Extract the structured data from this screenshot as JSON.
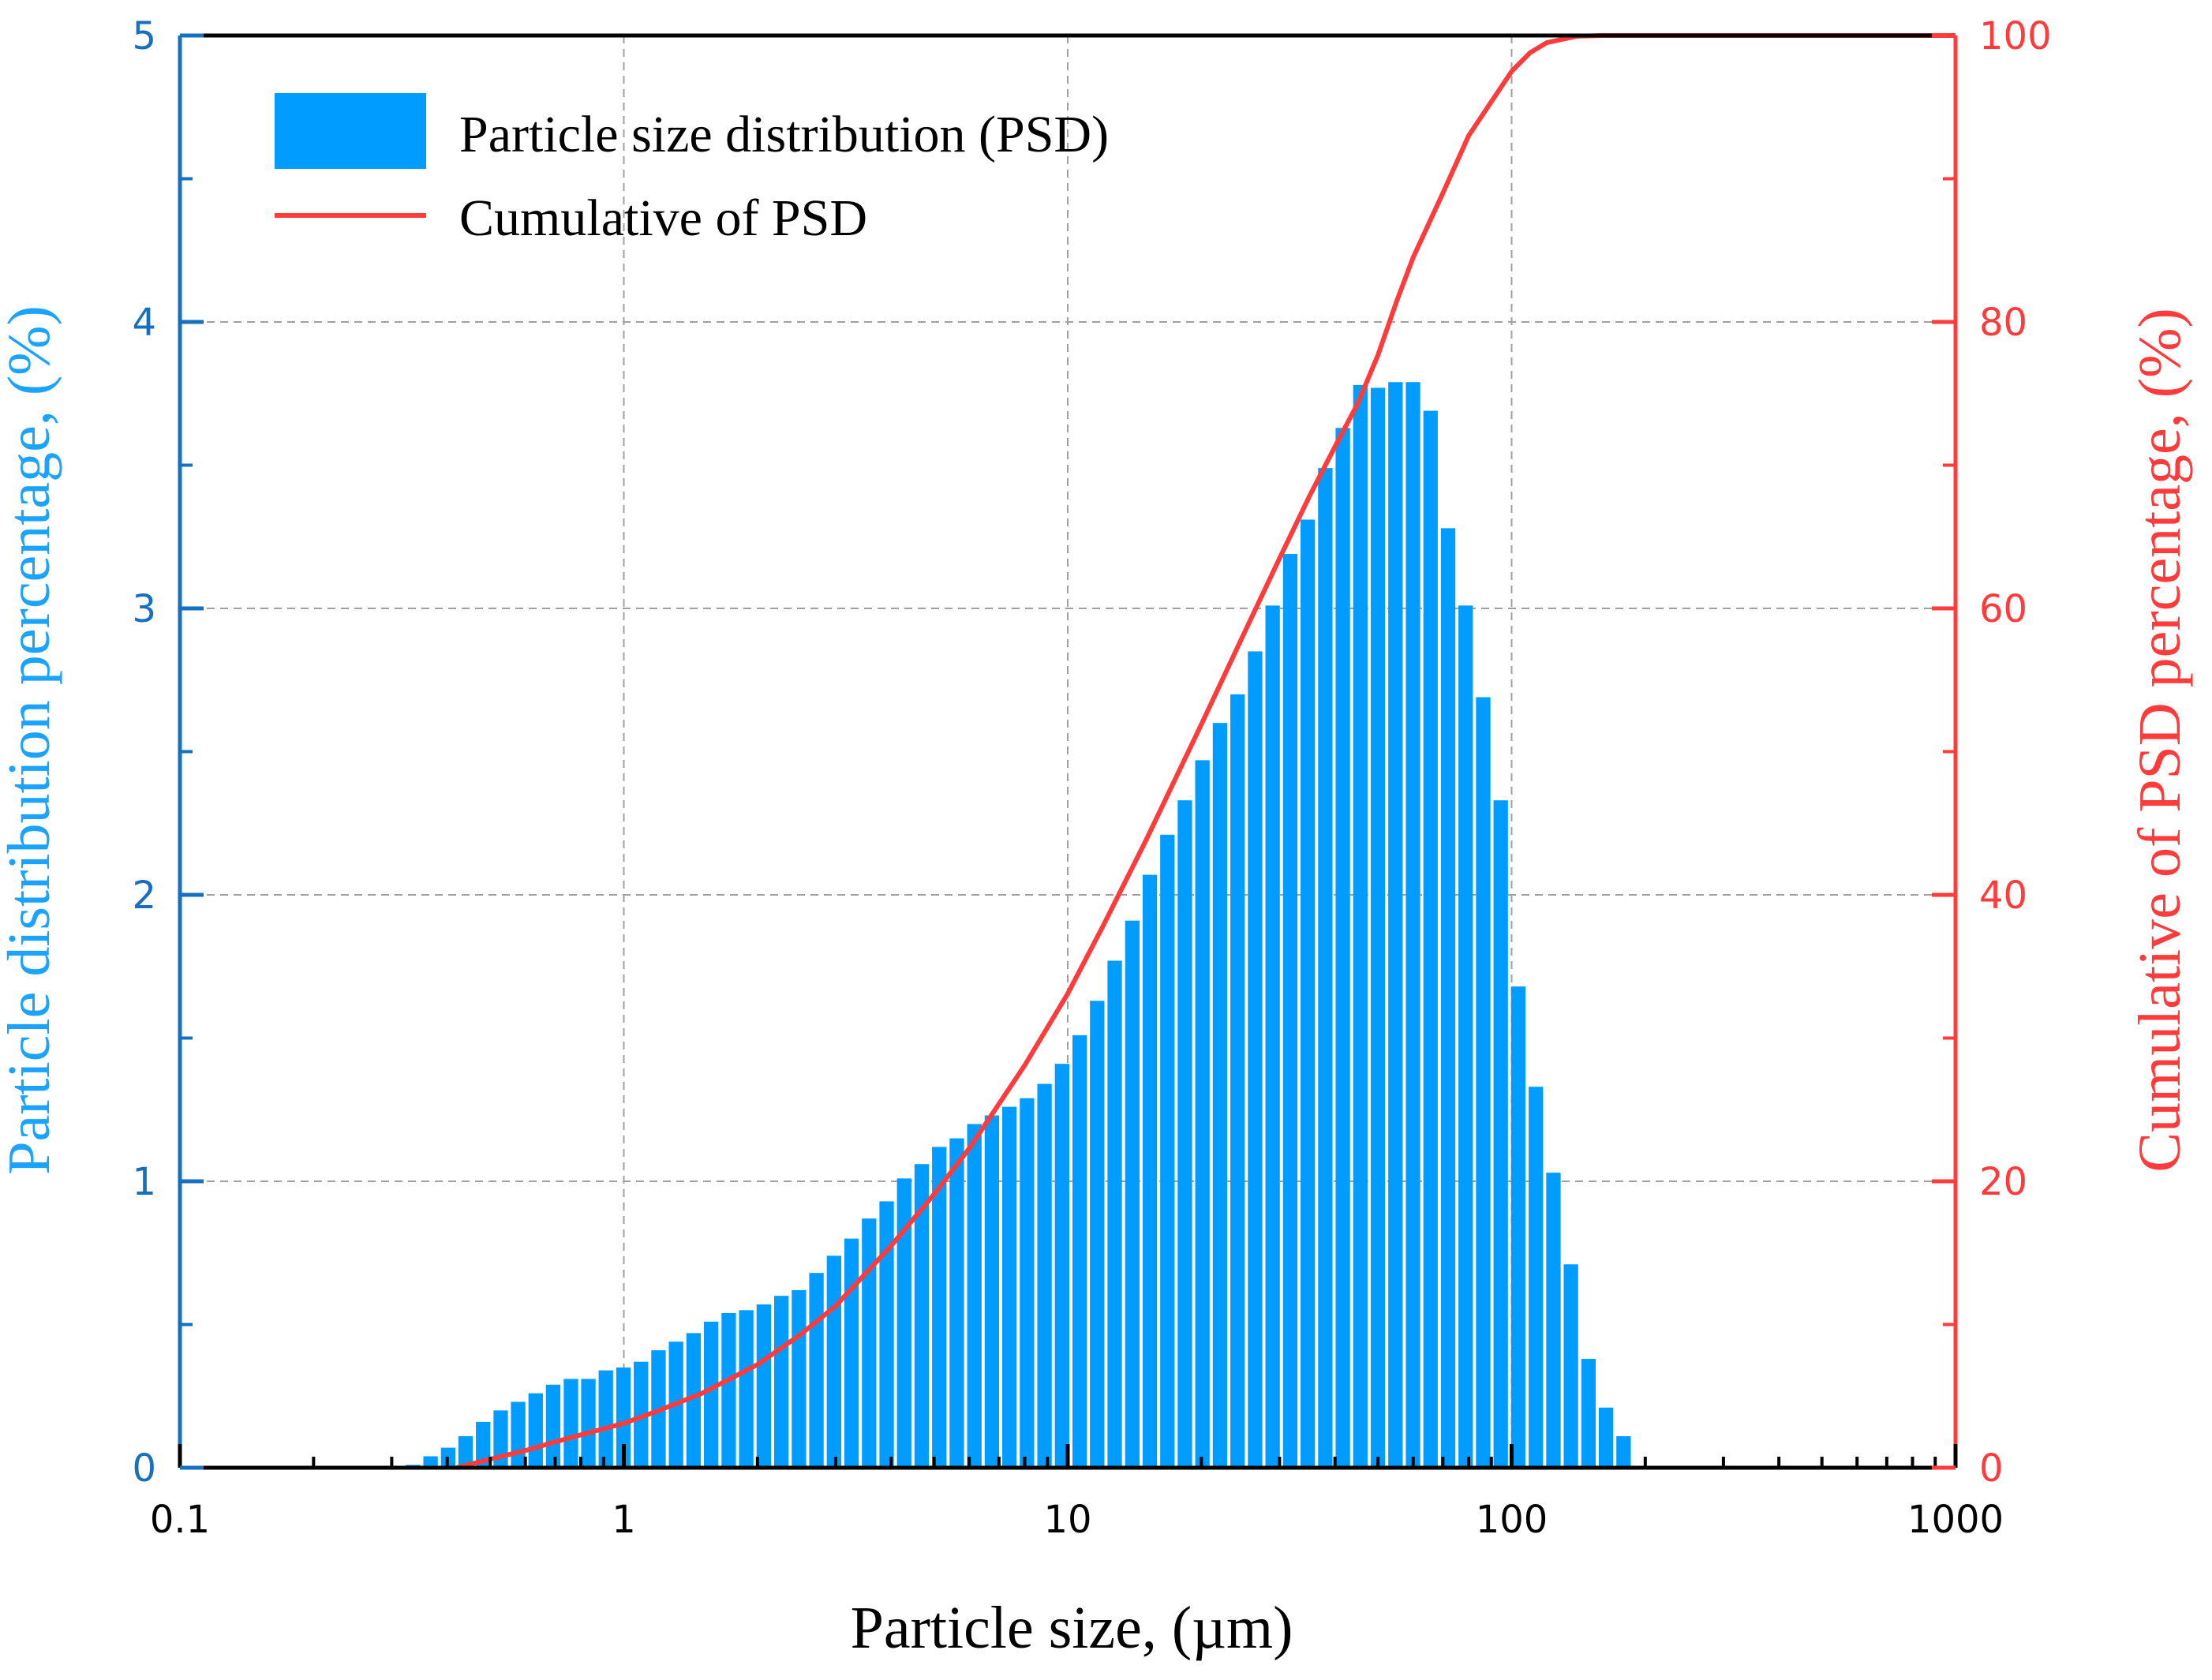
{
  "chart_data": {
    "type": "bar",
    "xlabel": "Particle size, (µm)",
    "ylabel_left": "Particle distribution percentage, (%)",
    "ylabel_right": "Cumulative of PSD percentage, (%)",
    "x_scale": "log",
    "xlim": [
      0.1,
      1000
    ],
    "ylim_left": [
      0,
      5
    ],
    "ylim_right": [
      0,
      100
    ],
    "x_ticks": [
      0.1,
      1,
      10,
      100,
      1000
    ],
    "x_tick_labels": [
      "0.1",
      "1",
      "10",
      "100",
      "1000"
    ],
    "y_left_ticks": [
      0,
      1,
      2,
      3,
      4,
      5
    ],
    "y_left_tick_labels": [
      "0",
      "1",
      "2",
      "3",
      "4",
      "5"
    ],
    "y_right_ticks": [
      0,
      20,
      40,
      60,
      80,
      100
    ],
    "y_right_tick_labels": [
      "0",
      "20",
      "40",
      "60",
      "80",
      "100"
    ],
    "grid": true,
    "legend_position": "top-left",
    "colors": {
      "bars": "#009cff",
      "cumulative": "#ff3b3b",
      "left_axis": "#1670c0",
      "right_axis": "#ff3b3b",
      "xlabel": "#000000",
      "ylabel_left": "#1aa4ff"
    },
    "series": [
      {
        "name": "Particle size distribution (PSD)",
        "type": "bar",
        "x": [
          0.335,
          0.367,
          0.402,
          0.44,
          0.482,
          0.528,
          0.578,
          0.633,
          0.693,
          0.76,
          0.832,
          0.911,
          0.998,
          1.093,
          1.197,
          1.311,
          1.436,
          1.573,
          1.723,
          1.887,
          2.067,
          2.264,
          2.48,
          2.716,
          2.975,
          3.258,
          3.569,
          3.909,
          4.281,
          4.689,
          5.136,
          5.625,
          6.161,
          6.748,
          7.391,
          8.095,
          8.866,
          9.711,
          10.64,
          11.65,
          12.76,
          13.98,
          15.31,
          16.77,
          18.36,
          20.11,
          22.03,
          24.13,
          26.43,
          28.95,
          31.71,
          34.73,
          38.04,
          41.66,
          45.63,
          49.98,
          54.74,
          59.96,
          65.67,
          71.93,
          78.78,
          86.29,
          94.51,
          103.5,
          113.4,
          124.2,
          136.0,
          149.0,
          163.2,
          178.7
        ],
        "values": [
          0.01,
          0.04,
          0.07,
          0.11,
          0.16,
          0.2,
          0.23,
          0.26,
          0.29,
          0.31,
          0.31,
          0.34,
          0.35,
          0.37,
          0.41,
          0.44,
          0.47,
          0.51,
          0.54,
          0.55,
          0.57,
          0.6,
          0.62,
          0.68,
          0.74,
          0.8,
          0.87,
          0.93,
          1.01,
          1.06,
          1.12,
          1.15,
          1.2,
          1.23,
          1.26,
          1.29,
          1.34,
          1.41,
          1.51,
          1.63,
          1.77,
          1.91,
          2.07,
          2.21,
          2.33,
          2.47,
          2.6,
          2.7,
          2.85,
          3.01,
          3.19,
          3.31,
          3.49,
          3.63,
          3.78,
          3.77,
          3.79,
          3.79,
          3.69,
          3.28,
          3.01,
          2.69,
          2.33,
          1.68,
          1.33,
          1.03,
          0.71,
          0.38,
          0.21,
          0.11
        ]
      },
      {
        "name": "Cumulative of PSD",
        "type": "line",
        "axis": "right",
        "x": [
          0.42,
          0.5,
          0.6,
          0.7,
          0.8,
          1.0,
          1.2,
          1.5,
          2.0,
          2.5,
          3.0,
          4.0,
          5.0,
          6.0,
          8.0,
          10,
          12,
          15,
          20,
          25,
          30,
          35,
          40,
          45,
          50,
          55,
          60,
          70,
          80,
          100,
          110,
          120,
          140,
          160
        ],
        "values": [
          0.0,
          0.6,
          1.2,
          1.8,
          2.3,
          3.1,
          4.0,
          5.2,
          7.2,
          9.3,
          11.3,
          15.5,
          19.1,
          22.3,
          28.1,
          33.1,
          37.8,
          43.8,
          51.9,
          58.3,
          63.5,
          67.8,
          71.3,
          74.3,
          77.7,
          81.4,
          84.5,
          89.0,
          93.0,
          97.5,
          98.8,
          99.5,
          99.95,
          100.0
        ]
      }
    ]
  }
}
